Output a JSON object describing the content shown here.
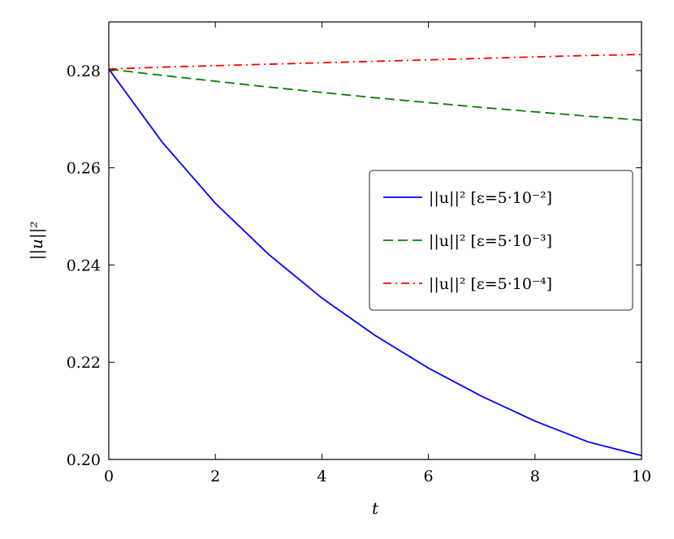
{
  "chart_data": {
    "type": "line",
    "xlabel": "t",
    "ylabel": "||u||²",
    "xlim": [
      0,
      10
    ],
    "ylim": [
      0.2,
      0.29
    ],
    "xticks": [
      0,
      2,
      4,
      6,
      8,
      10
    ],
    "yticks": [
      0.2,
      0.22,
      0.24,
      0.26,
      0.28
    ],
    "xtick_labels": [
      "0",
      "2",
      "4",
      "6",
      "8",
      "10"
    ],
    "ytick_labels": [
      "0.20",
      "0.22",
      "0.24",
      "0.26",
      "0.28"
    ],
    "grid": false,
    "legend_position": "center-right",
    "x": [
      0,
      1,
      2,
      3,
      4,
      5,
      6,
      7,
      8,
      9,
      10
    ],
    "series": [
      {
        "name": "||u||²  [ε=5·10⁻²]",
        "color": "#0000ff",
        "dash": "solid",
        "values": [
          0.2803,
          0.2653,
          0.2527,
          0.2422,
          0.2332,
          0.2255,
          0.2188,
          0.213,
          0.2079,
          0.2036,
          0.2008
        ]
      },
      {
        "name": "||u||²  [ε=5·10⁻³]",
        "color": "#008000",
        "dash": "dashed",
        "values": [
          0.2803,
          0.279,
          0.2778,
          0.2766,
          0.2755,
          0.2744,
          0.2734,
          0.2724,
          0.2715,
          0.2706,
          0.2698
        ]
      },
      {
        "name": "||u||²  [ε=5·10⁻⁴]",
        "color": "#ff0000",
        "dash": "dashdot",
        "values": [
          0.2803,
          0.2807,
          0.281,
          0.2813,
          0.2816,
          0.2819,
          0.2822,
          0.2825,
          0.2828,
          0.2831,
          0.2833
        ]
      }
    ]
  }
}
